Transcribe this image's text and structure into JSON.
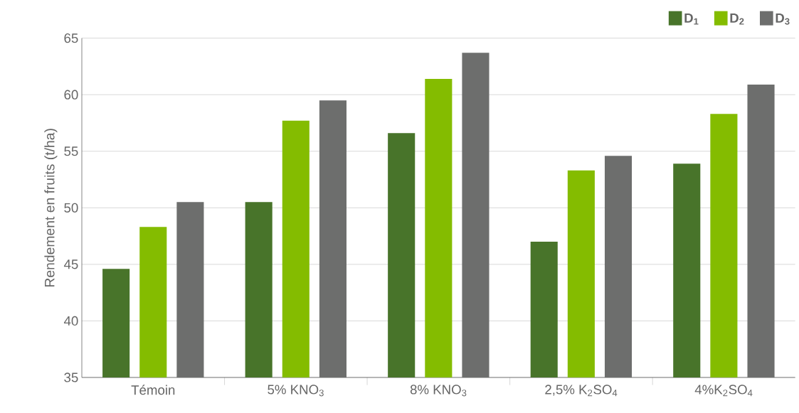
{
  "chart_data": {
    "type": "bar",
    "ylabel": "Rendement en fruits (t/ha)",
    "categories": [
      "Témoin",
      "5% KNO$_{3}$",
      "8% KNO$_{3}$",
      "2,5% K$_{2}$SO$_{4}$",
      "4%K$_{2}$SO$_{4}$"
    ],
    "series": [
      {
        "name": "D$_{1}$",
        "color": "#48742a",
        "values": [
          44.6,
          50.5,
          56.6,
          47.0,
          53.9
        ]
      },
      {
        "name": "D$_{2}$",
        "color": "#84bc00",
        "values": [
          48.3,
          57.7,
          61.4,
          53.3,
          58.3
        ]
      },
      {
        "name": "D$_{3}$",
        "color": "#6d6e6d",
        "values": [
          50.5,
          59.5,
          63.7,
          54.6,
          60.9
        ]
      }
    ],
    "ylim": [
      35,
      65
    ],
    "yticks": [
      35,
      40,
      45,
      50,
      55,
      60,
      65
    ],
    "grid": "y",
    "legend": "top right"
  }
}
